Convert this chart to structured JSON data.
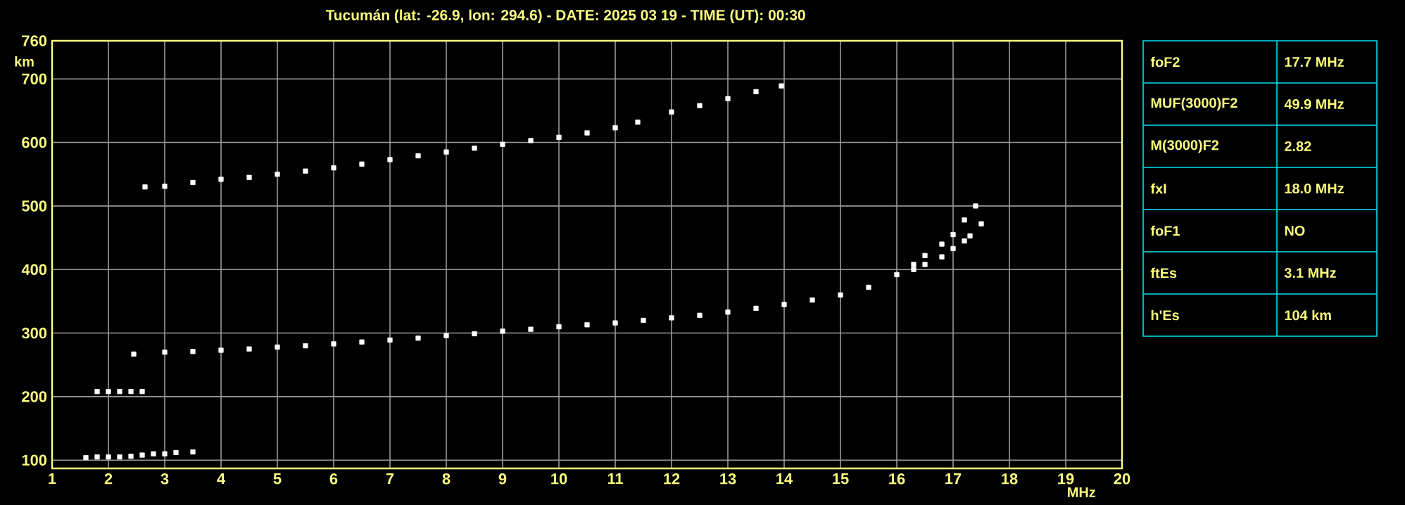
{
  "chart_data": [
    {
      "type": "scatter",
      "title": "Tucumán (lat: -26.9, lon: 294.6) - DATE: 2025 03 19 - TIME (UT): 00:30",
      "xlabel": "MHz",
      "ylabel": "km",
      "xlim": [
        1,
        20
      ],
      "ylim": [
        87,
        760
      ],
      "xticks": [
        1,
        2,
        3,
        4,
        5,
        6,
        7,
        8,
        9,
        10,
        11,
        12,
        13,
        14,
        15,
        16,
        17,
        18,
        19,
        20
      ],
      "yticks": [
        100,
        200,
        300,
        400,
        500,
        600,
        700,
        760
      ],
      "grid": true,
      "marker": "square",
      "series": [
        {
          "color": "#ffffff",
          "x": [
            1.6,
            1.8,
            2.0,
            2.2,
            2.4,
            2.6,
            2.8,
            3.0,
            3.2,
            3.5
          ],
          "values": [
            104,
            105,
            105,
            105,
            106,
            108,
            110,
            110,
            112,
            113
          ]
        },
        {
          "color": "#ffffff",
          "x": [
            1.8,
            2.0,
            2.2,
            2.4,
            2.6
          ],
          "values": [
            208,
            208,
            208,
            208,
            208
          ]
        },
        {
          "color": "#ffffff",
          "x": [
            2.45,
            3.0,
            3.5,
            4.0,
            4.5,
            5.0,
            5.5,
            6.0,
            6.5,
            7.0,
            7.5,
            8.0,
            8.5,
            9.0,
            9.5,
            10.0,
            10.5,
            11.0,
            11.5,
            12.0,
            12.5,
            13.0,
            13.5,
            14.0,
            14.5,
            15.0,
            15.5,
            16.0,
            16.3,
            16.5,
            16.8,
            17.0,
            17.2,
            17.4
          ],
          "values": [
            267,
            270,
            271,
            273,
            275,
            278,
            280,
            283,
            286,
            289,
            292,
            296,
            299,
            303,
            306,
            310,
            313,
            316,
            320,
            324,
            328,
            333,
            339,
            345,
            352,
            360,
            372,
            392,
            408,
            422,
            440,
            455,
            478,
            500
          ]
        },
        {
          "color": "#ffffff",
          "x": [
            16.3,
            16.5,
            16.8,
            17.0,
            17.2,
            17.3,
            17.5
          ],
          "values": [
            400,
            408,
            420,
            433,
            445,
            453,
            472
          ]
        },
        {
          "color": "#ffffff",
          "x": [
            2.65,
            3.0,
            3.5,
            4.0,
            4.5,
            5.0,
            5.5,
            6.0,
            6.5,
            7.0,
            7.5,
            8.0,
            8.5,
            9.0,
            9.5,
            10.0,
            10.5,
            11.0,
            11.4
          ],
          "values": [
            530,
            531,
            537,
            542,
            545,
            550,
            555,
            560,
            566,
            573,
            579,
            585,
            591,
            597,
            603,
            608,
            615,
            623,
            632
          ]
        },
        {
          "color": "#ffffff",
          "x": [
            12.0,
            12.5,
            13.0,
            13.5,
            13.95
          ],
          "values": [
            648,
            658,
            669,
            680,
            689
          ]
        }
      ]
    },
    {
      "type": "other",
      "annotations": [
        "foF2",
        "17.7 MHz",
        "MUF(3000)F2",
        "49.9 MHz",
        "M(3000)F2",
        "2.82",
        "fxI",
        "18.0 MHz",
        "foF1",
        "NO",
        "ftEs",
        "3.1 MHz",
        "h'Es",
        "104 km"
      ]
    }
  ]
}
